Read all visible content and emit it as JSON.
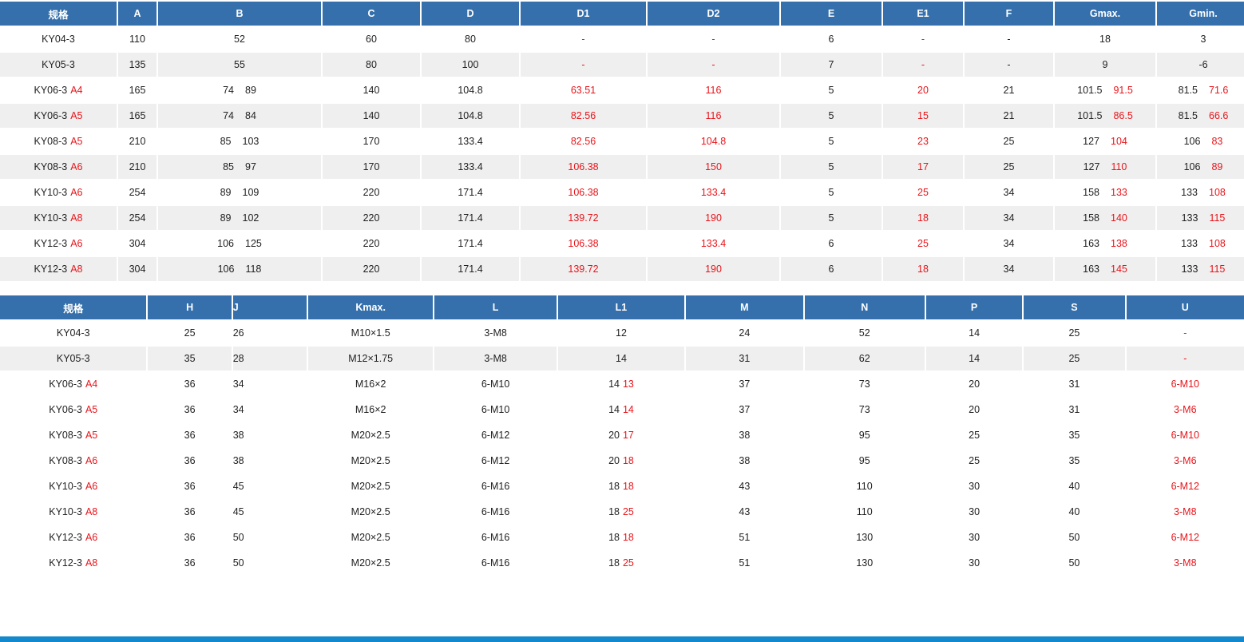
{
  "table1": {
    "headers": [
      "规格",
      "A",
      "B",
      "C",
      "D",
      "D1",
      "D2",
      "E",
      "E1",
      "F",
      "Gmax.",
      "Gmin."
    ],
    "rows": [
      {
        "spec": "KY04-3",
        "spec_suffix": "",
        "A": "110",
        "B1": "52",
        "B2": "",
        "C": "60",
        "D": "80",
        "D1": "-",
        "D2": "-",
        "E": "6",
        "E1": "-",
        "F": "-",
        "Gmax1": "18",
        "Gmax2": "",
        "Gmin1": "3",
        "Gmin2": ""
      },
      {
        "spec": "KY05-3",
        "spec_suffix": "",
        "A": "135",
        "B1": "55",
        "B2": "",
        "C": "80",
        "D": "100",
        "D1": "-",
        "D2": "-",
        "E": "7",
        "E1": "-",
        "F": "-",
        "Gmax1": "9",
        "Gmax2": "",
        "Gmin1": "-6",
        "Gmin2": ""
      },
      {
        "spec": "KY06-3",
        "spec_suffix": "A4",
        "A": "165",
        "B1": "74",
        "B2": "89",
        "C": "140",
        "D": "104.8",
        "D1": "63.51",
        "D2": "116",
        "E": "5",
        "E1": "20",
        "F": "21",
        "Gmax1": "101.5",
        "Gmax2": "91.5",
        "Gmin1": "81.5",
        "Gmin2": "71.6"
      },
      {
        "spec": "KY06-3",
        "spec_suffix": "A5",
        "A": "165",
        "B1": "74",
        "B2": "84",
        "C": "140",
        "D": "104.8",
        "D1": "82.56",
        "D2": "116",
        "E": "5",
        "E1": "15",
        "F": "21",
        "Gmax1": "101.5",
        "Gmax2": "86.5",
        "Gmin1": "81.5",
        "Gmin2": "66.6"
      },
      {
        "spec": "KY08-3",
        "spec_suffix": "A5",
        "A": "210",
        "B1": "85",
        "B2": "103",
        "C": "170",
        "D": "133.4",
        "D1": "82.56",
        "D2": "104.8",
        "E": "5",
        "E1": "23",
        "F": "25",
        "Gmax1": "127",
        "Gmax2": "104",
        "Gmin1": "106",
        "Gmin2": "83"
      },
      {
        "spec": "KY08-3",
        "spec_suffix": "A6",
        "A": "210",
        "B1": "85",
        "B2": "97",
        "C": "170",
        "D": "133.4",
        "D1": "106.38",
        "D2": "150",
        "E": "5",
        "E1": "17",
        "F": "25",
        "Gmax1": "127",
        "Gmax2": "110",
        "Gmin1": "106",
        "Gmin2": "89"
      },
      {
        "spec": "KY10-3",
        "spec_suffix": "A6",
        "A": "254",
        "B1": "89",
        "B2": "109",
        "C": "220",
        "D": "171.4",
        "D1": "106.38",
        "D2": "133.4",
        "E": "5",
        "E1": "25",
        "F": "34",
        "Gmax1": "158",
        "Gmax2": "133",
        "Gmin1": "133",
        "Gmin2": "108"
      },
      {
        "spec": "KY10-3",
        "spec_suffix": "A8",
        "A": "254",
        "B1": "89",
        "B2": "102",
        "C": "220",
        "D": "171.4",
        "D1": "139.72",
        "D2": "190",
        "E": "5",
        "E1": "18",
        "F": "34",
        "Gmax1": "158",
        "Gmax2": "140",
        "Gmin1": "133",
        "Gmin2": "115"
      },
      {
        "spec": "KY12-3",
        "spec_suffix": "A6",
        "A": "304",
        "B1": "106",
        "B2": "125",
        "C": "220",
        "D": "171.4",
        "D1": "106.38",
        "D2": "133.4",
        "E": "6",
        "E1": "25",
        "F": "34",
        "Gmax1": "163",
        "Gmax2": "138",
        "Gmin1": "133",
        "Gmin2": "108"
      },
      {
        "spec": "KY12-3",
        "spec_suffix": "A8",
        "A": "304",
        "B1": "106",
        "B2": "118",
        "C": "220",
        "D": "171.4",
        "D1": "139.72",
        "D2": "190",
        "E": "6",
        "E1": "18",
        "F": "34",
        "Gmax1": "163",
        "Gmax2": "145",
        "Gmin1": "133",
        "Gmin2": "115"
      }
    ]
  },
  "table2": {
    "headers": [
      "规格",
      "H",
      "J",
      "Kmax.",
      "L",
      "L1",
      "M",
      "N",
      "P",
      "S",
      "U"
    ],
    "rows": [
      {
        "spec": "KY04-3",
        "spec_suffix": "",
        "H": "25",
        "J": "26",
        "K": "M10×1.5",
        "L": "3-M8",
        "L1a": "12",
        "L1b": "",
        "M": "24",
        "N": "52",
        "P": "14",
        "S": "25",
        "U": "-"
      },
      {
        "spec": "KY05-3",
        "spec_suffix": "",
        "H": "35",
        "J": "28",
        "K": "M12×1.75",
        "L": "3-M8",
        "L1a": "14",
        "L1b": "",
        "M": "31",
        "N": "62",
        "P": "14",
        "S": "25",
        "U": "-"
      },
      {
        "spec": "KY06-3",
        "spec_suffix": "A4",
        "H": "36",
        "J": "34",
        "K": "M16×2",
        "L": "6-M10",
        "L1a": "14",
        "L1b": "13",
        "M": "37",
        "N": "73",
        "P": "20",
        "S": "31",
        "U": "6-M10"
      },
      {
        "spec": "KY06-3",
        "spec_suffix": "A5",
        "H": "36",
        "J": "34",
        "K": "M16×2",
        "L": "6-M10",
        "L1a": "14",
        "L1b": "14",
        "M": "37",
        "N": "73",
        "P": "20",
        "S": "31",
        "U": "3-M6"
      },
      {
        "spec": "KY08-3",
        "spec_suffix": "A5",
        "H": "36",
        "J": "38",
        "K": "M20×2.5",
        "L": "6-M12",
        "L1a": "20",
        "L1b": "17",
        "M": "38",
        "N": "95",
        "P": "25",
        "S": "35",
        "U": "6-M10"
      },
      {
        "spec": "KY08-3",
        "spec_suffix": "A6",
        "H": "36",
        "J": "38",
        "K": "M20×2.5",
        "L": "6-M12",
        "L1a": "20",
        "L1b": "18",
        "M": "38",
        "N": "95",
        "P": "25",
        "S": "35",
        "U": "3-M6"
      },
      {
        "spec": "KY10-3",
        "spec_suffix": "A6",
        "H": "36",
        "J": "45",
        "K": "M20×2.5",
        "L": "6-M16",
        "L1a": "18",
        "L1b": "18",
        "M": "43",
        "N": "110",
        "P": "30",
        "S": "40",
        "U": "6-M12"
      },
      {
        "spec": "KY10-3",
        "spec_suffix": "A8",
        "H": "36",
        "J": "45",
        "K": "M20×2.5",
        "L": "6-M16",
        "L1a": "18",
        "L1b": "25",
        "M": "43",
        "N": "110",
        "P": "30",
        "S": "40",
        "U": "3-M8"
      },
      {
        "spec": "KY12-3",
        "spec_suffix": "A6",
        "H": "36",
        "J": "50",
        "K": "M20×2.5",
        "L": "6-M16",
        "L1a": "18",
        "L1b": "18",
        "M": "51",
        "N": "130",
        "P": "30",
        "S": "50",
        "U": "6-M12"
      },
      {
        "spec": "KY12-3",
        "spec_suffix": "A8",
        "H": "36",
        "J": "50",
        "K": "M20×2.5",
        "L": "6-M16",
        "L1a": "18",
        "L1b": "25",
        "M": "51",
        "N": "130",
        "P": "30",
        "S": "50",
        "U": "3-M8"
      }
    ]
  },
  "colors": {
    "header_bg": "#3570ac",
    "alt_row": "#efefef",
    "accent_red": "#e8151b",
    "bottom_bar": "#1488cc"
  }
}
